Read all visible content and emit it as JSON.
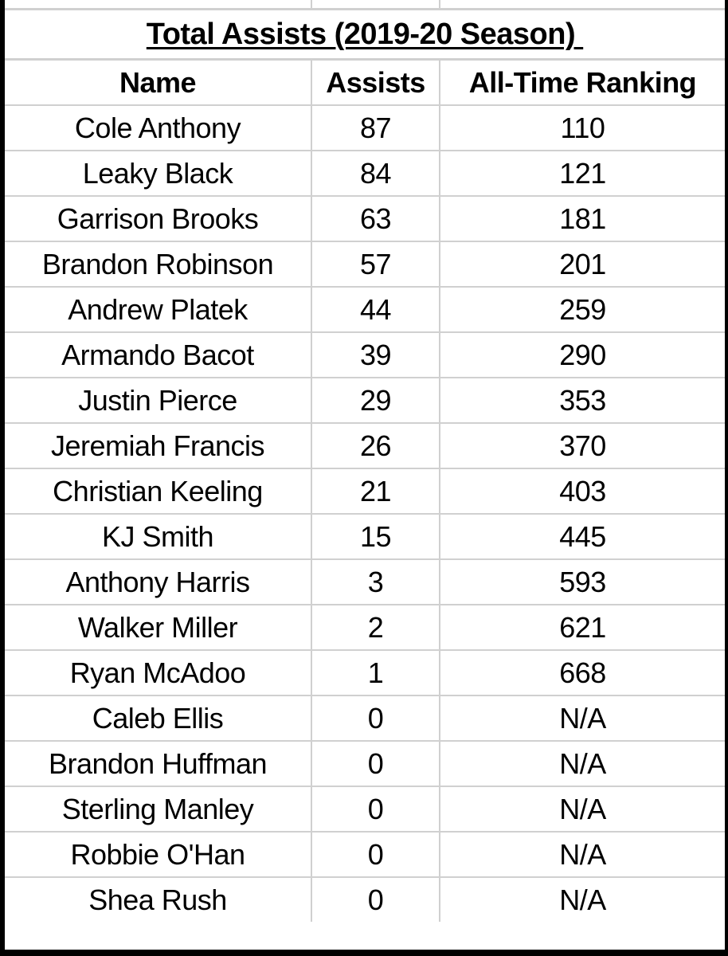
{
  "title": "Total Assists (2019-20 Season) ",
  "columns": [
    "Name",
    "Assists",
    "All-Time Ranking"
  ],
  "rows": [
    [
      "Cole Anthony",
      "87",
      "110"
    ],
    [
      "Leaky Black",
      "84",
      "121"
    ],
    [
      "Garrison Brooks",
      "63",
      "181"
    ],
    [
      "Brandon Robinson",
      "57",
      "201"
    ],
    [
      "Andrew Platek",
      "44",
      "259"
    ],
    [
      "Armando Bacot",
      "39",
      "290"
    ],
    [
      "Justin Pierce",
      "29",
      "353"
    ],
    [
      "Jeremiah Francis",
      "26",
      "370"
    ],
    [
      "Christian Keeling",
      "21",
      "403"
    ],
    [
      "KJ Smith",
      "15",
      "445"
    ],
    [
      "Anthony Harris",
      "3",
      "593"
    ],
    [
      "Walker Miller",
      "2",
      "621"
    ],
    [
      "Ryan McAdoo",
      "1",
      "668"
    ],
    [
      "Caleb Ellis",
      "0",
      "N/A"
    ],
    [
      "Brandon Huffman",
      "0",
      "N/A"
    ],
    [
      "Sterling Manley",
      "0",
      "N/A"
    ],
    [
      "Robbie O'Han",
      "0",
      "N/A"
    ],
    [
      "Shea Rush",
      "0",
      "N/A"
    ]
  ]
}
